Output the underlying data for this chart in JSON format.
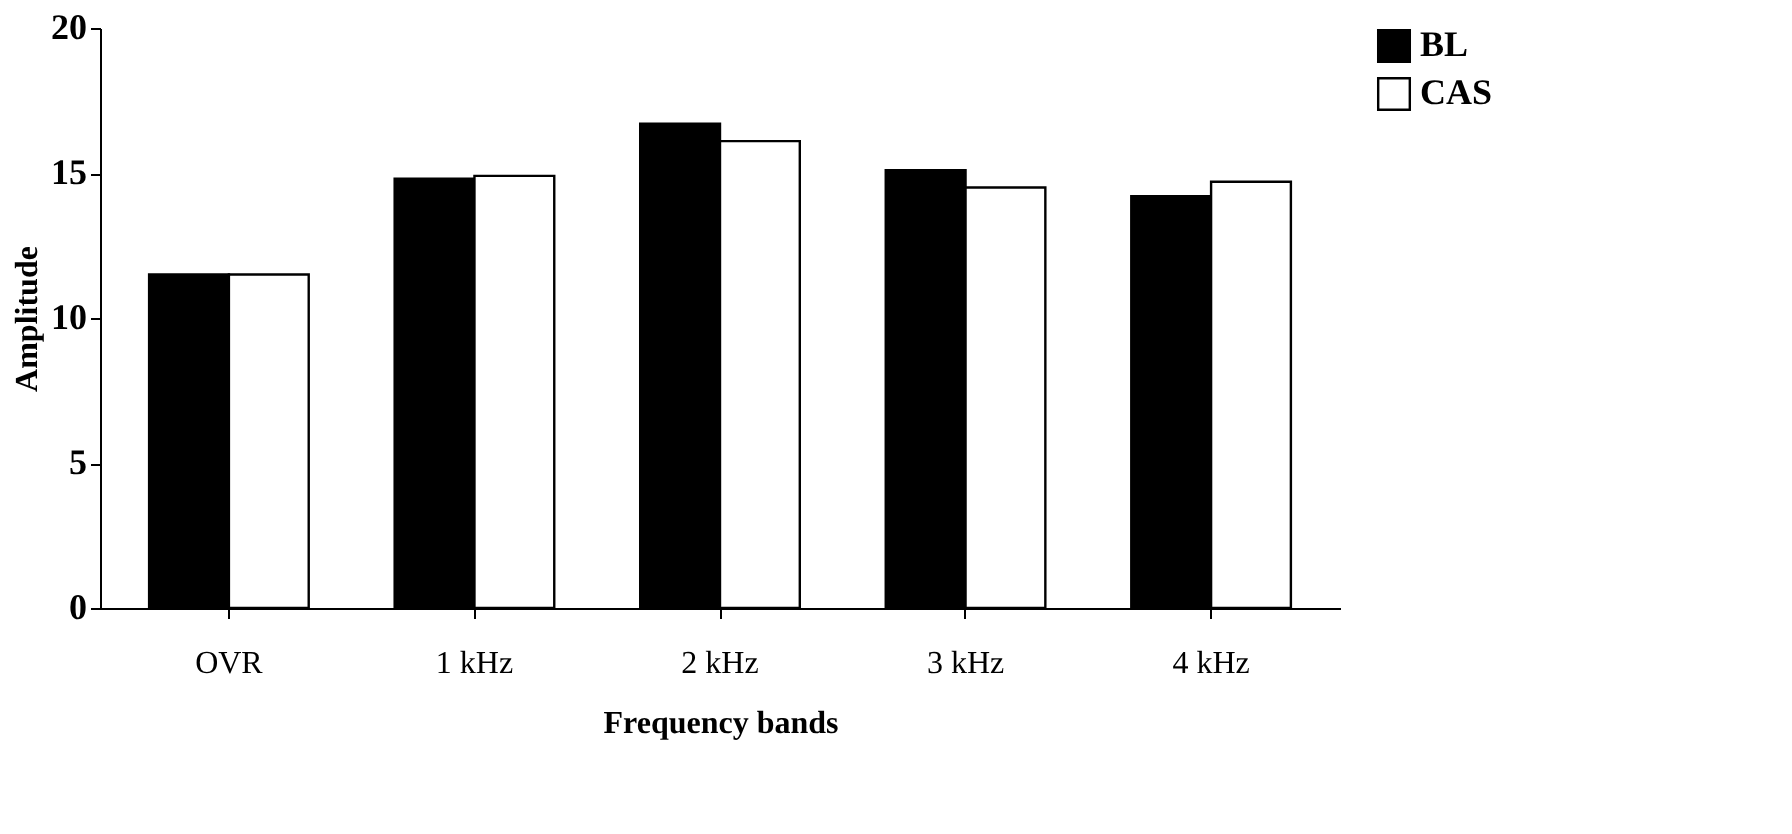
{
  "chart_data": {
    "type": "bar",
    "xlabel": "Frequency bands",
    "ylabel": "Amplitude",
    "categories": [
      "OVR",
      "1 kHz",
      "2 kHz",
      "3 kHz",
      "4 kHz"
    ],
    "series": [
      {
        "name": "BL",
        "color": "#000000",
        "values": [
          11.5,
          14.8,
          16.7,
          15.1,
          14.2
        ]
      },
      {
        "name": "CAS",
        "color": "#ffffff",
        "values": [
          11.5,
          14.9,
          16.1,
          14.5,
          14.7
        ]
      }
    ],
    "ylim": [
      0,
      20
    ],
    "yticks": [
      0,
      5,
      10,
      15,
      20
    ],
    "grid": false,
    "legend": "right"
  }
}
